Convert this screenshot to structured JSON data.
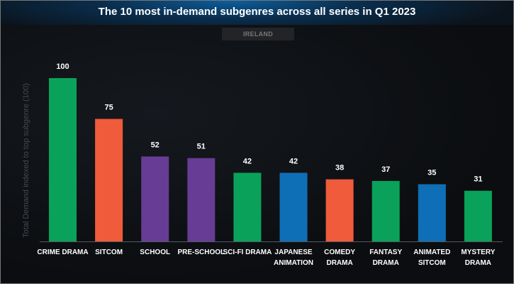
{
  "chart_data": {
    "type": "bar",
    "title": "The 10 most in-demand subgenres across all series in Q1 2023",
    "subtitle": "IRELAND",
    "ylabel": "Total Demand indexed to top subgenre (100)",
    "xlabel": "",
    "ylim": [
      0,
      100
    ],
    "grid": false,
    "categories": [
      [
        "CRIME DRAMA"
      ],
      [
        "SITCOM"
      ],
      [
        "SCHOOL"
      ],
      [
        "PRE-SCHOOL"
      ],
      [
        "SCI-FI DRAMA"
      ],
      [
        "JAPANESE",
        "ANIMATION"
      ],
      [
        "COMEDY",
        "DRAMA"
      ],
      [
        "FANTASY",
        "DRAMA"
      ],
      [
        "ANIMATED",
        "SITCOM"
      ],
      [
        "MYSTERY",
        "DRAMA"
      ]
    ],
    "values": [
      100,
      75,
      52,
      51,
      42,
      42,
      38,
      37,
      35,
      31
    ],
    "colors": [
      "#0aa25a",
      "#f05b3b",
      "#673c94",
      "#673c94",
      "#0aa25a",
      "#0f6fb6",
      "#f05b3b",
      "#0aa25a",
      "#0f6fb6",
      "#0aa25a"
    ]
  }
}
